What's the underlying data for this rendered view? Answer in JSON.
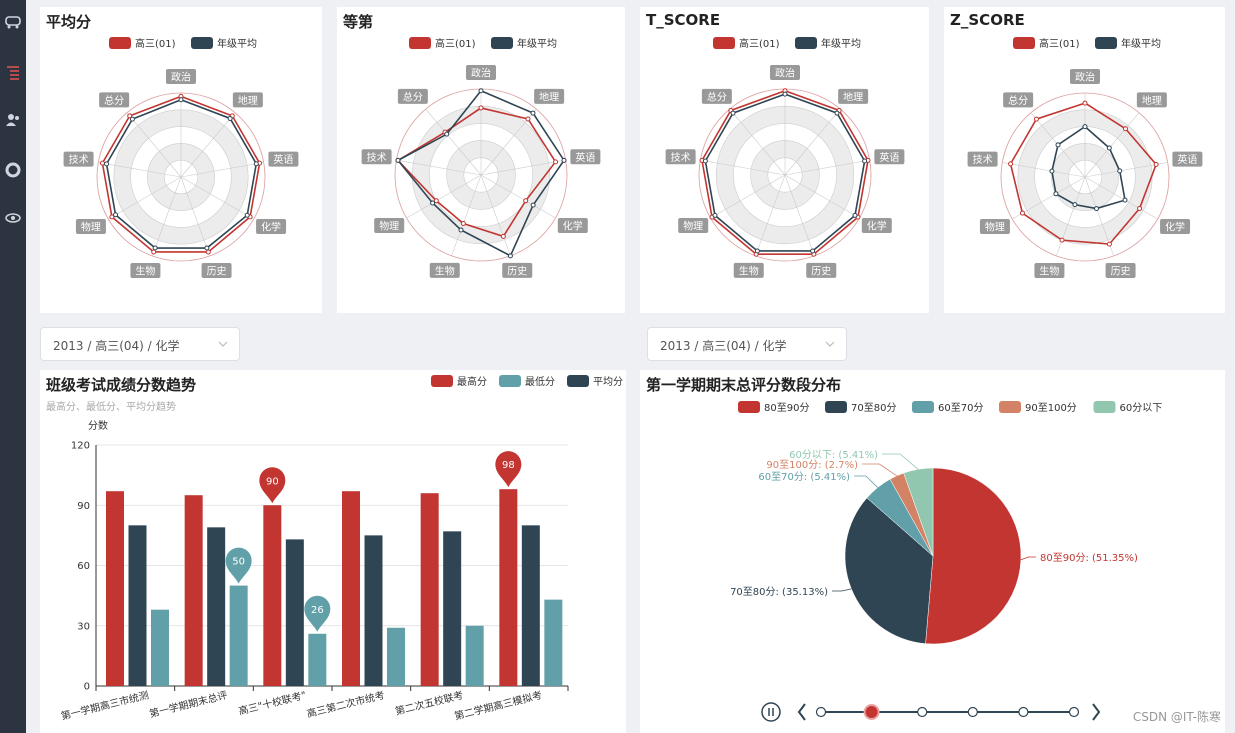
{
  "sidebar": {
    "icons": [
      "car-icon",
      "list-icon",
      "users-icon",
      "lifebuoy-icon",
      "eye-icon"
    ]
  },
  "colors": {
    "class": "#c23531",
    "grade": "#2f4554",
    "min": "#61a0a8",
    "d90": "#d48265",
    "below60": "#91c7ae",
    "grid": "#cccccc"
  },
  "radar_subjects": [
    "政治",
    "地理",
    "英语",
    "化学",
    "历史",
    "生物",
    "物理",
    "技术",
    "总分"
  ],
  "legend_radar": {
    "class": "高三(01)",
    "grade": "年级平均"
  },
  "selects": {
    "left": "2013 / 高三(04) / 化学",
    "right": "2013 / 高三(04) / 化学"
  },
  "watermark": "CSDN @IT-陈寒",
  "chart_data": [
    {
      "type": "radar",
      "title": "平均分",
      "indicators": [
        "政治",
        "地理",
        "英语",
        "化学",
        "历史",
        "生物",
        "物理",
        "技术",
        "总分"
      ],
      "max": 100,
      "series": [
        {
          "name": "高三(01)",
          "values": [
            96,
            95,
            95,
            95,
            95,
            95,
            95,
            95,
            95
          ]
        },
        {
          "name": "年级平均",
          "values": [
            92,
            91,
            91,
            91,
            90,
            90,
            90,
            90,
            90
          ]
        }
      ]
    },
    {
      "type": "radar",
      "title": "等第",
      "indicators": [
        "政治",
        "地理",
        "英语",
        "化学",
        "历史",
        "生物",
        "物理",
        "技术",
        "总分"
      ],
      "max": 100,
      "series": [
        {
          "name": "高三(01)",
          "values": [
            78,
            85,
            88,
            60,
            76,
            60,
            60,
            98,
            65
          ]
        },
        {
          "name": "年级平均",
          "values": [
            98,
            94,
            98,
            70,
            100,
            68,
            65,
            98,
            62
          ]
        }
      ]
    },
    {
      "type": "radar",
      "title": "T_SCORE",
      "indicators": [
        "政治",
        "地理",
        "英语",
        "化学",
        "历史",
        "生物",
        "物理",
        "技术",
        "总分"
      ],
      "max": 100,
      "series": [
        {
          "name": "高三(01)",
          "values": [
            98,
            98,
            98,
            98,
            98,
            98,
            98,
            98,
            98
          ]
        },
        {
          "name": "年级平均",
          "values": [
            94,
            94,
            94,
            94,
            94,
            94,
            94,
            94,
            94
          ]
        }
      ]
    },
    {
      "type": "radar",
      "title": "Z_SCORE",
      "indicators": [
        "政治",
        "地理",
        "英语",
        "化学",
        "历史",
        "生物",
        "物理",
        "技术",
        "总分"
      ],
      "max": 100,
      "series": [
        {
          "name": "高三(01)",
          "values": [
            88,
            75,
            86,
            75,
            85,
            80,
            86,
            90,
            90
          ]
        },
        {
          "name": "年级平均",
          "values": [
            60,
            45,
            42,
            55,
            40,
            35,
            40,
            40,
            50
          ]
        }
      ]
    },
    {
      "type": "bar",
      "title": "班级考试成绩分数趋势",
      "subtitle": "最高分、最低分、平均分趋势",
      "ylabel": "分数",
      "ylim": [
        0,
        120
      ],
      "yticks": [
        0,
        30,
        60,
        90,
        120
      ],
      "categories": [
        "第一学期高三市统测",
        "第一学期期末总评",
        "高三\"十校联考\"",
        "高三第二次市统考",
        "第二次五校联考",
        "第二学期高三模拟考"
      ],
      "series": [
        {
          "name": "最高分",
          "values": [
            97,
            95,
            90,
            97,
            96,
            98
          ]
        },
        {
          "name": "平均分",
          "values": [
            80,
            79,
            73,
            75,
            77,
            80
          ]
        },
        {
          "name": "最低分",
          "values": [
            38,
            50,
            26,
            29,
            30,
            43
          ]
        }
      ],
      "markers": [
        {
          "series": "最高分",
          "index": 2,
          "label": "90"
        },
        {
          "series": "最高分",
          "index": 5,
          "label": "98"
        },
        {
          "series": "最低分",
          "index": 1,
          "label": "50"
        },
        {
          "series": "最低分",
          "index": 2,
          "label": "26"
        }
      ],
      "legend": [
        "最高分",
        "最低分",
        "平均分"
      ]
    },
    {
      "type": "pie",
      "title": "第一学期期末总评分数段分布",
      "legend": [
        "80至90分",
        "70至80分",
        "60至70分",
        "90至100分",
        "60分以下"
      ],
      "slices": [
        {
          "name": "80至90分",
          "value": 51.35,
          "label": "80至90分: (51.35%)"
        },
        {
          "name": "70至80分",
          "value": 35.13,
          "label": "70至80分: (35.13%)"
        },
        {
          "name": "60至70分",
          "value": 5.41,
          "label": "60至70分: (5.41%)"
        },
        {
          "name": "90至100分",
          "value": 2.7,
          "label": "90至100分: (2.7%)"
        },
        {
          "name": "60分以下",
          "value": 5.41,
          "label": "60分以下: (5.41%)"
        }
      ],
      "timeline_points": 6,
      "timeline_current": 1
    }
  ]
}
